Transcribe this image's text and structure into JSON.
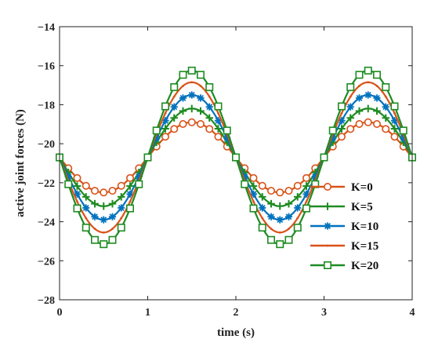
{
  "chart_data": {
    "type": "line",
    "xlabel": "time (s)",
    "ylabel": "active joint forces (N)",
    "xlim": [
      0,
      4
    ],
    "ylim": [
      -28,
      -14
    ],
    "xticks": [
      "0",
      "1",
      "2",
      "3",
      "4"
    ],
    "yticks": [
      "−28",
      "−26",
      "−24",
      "−22",
      "−20",
      "−18",
      "−16",
      "−14"
    ],
    "grid": false,
    "legend_position": "bottom-right",
    "series": [
      {
        "name": "K=0",
        "color": "#D95319",
        "marker": "circle",
        "center": -20.7,
        "amplitude": 1.8
      },
      {
        "name": "K=5",
        "color": "#1E8B22",
        "marker": "plus",
        "center": -20.7,
        "amplitude": 2.5
      },
      {
        "name": "K=10",
        "color": "#0072BD",
        "marker": "asterisk",
        "center": -20.7,
        "amplitude": 3.2
      },
      {
        "name": "K=15",
        "color": "#D95319",
        "marker": "point",
        "center": -20.7,
        "amplitude": 3.85
      },
      {
        "name": "K=20",
        "color": "#1E8B22",
        "marker": "square",
        "center": -20.7,
        "amplitude": 4.45
      }
    ],
    "curve_formula": "y = center - amplitude * sin(pi * t)",
    "sample_step_s": 0.1
  }
}
